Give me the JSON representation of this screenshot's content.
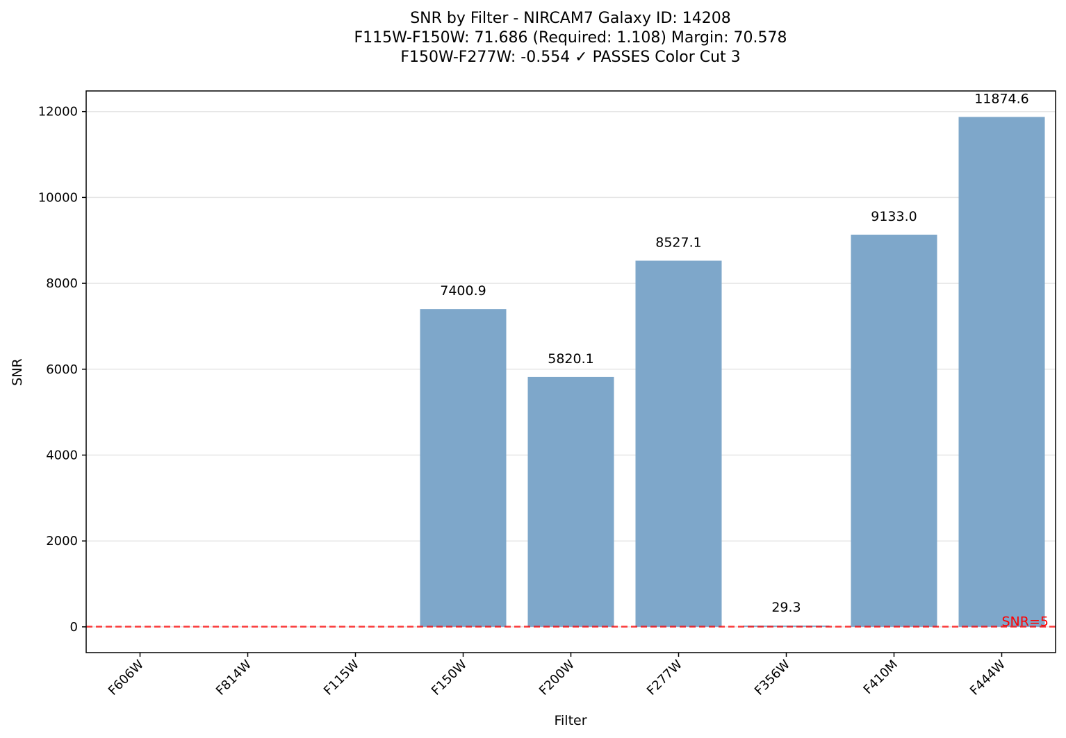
{
  "chart_data": {
    "type": "bar",
    "title_lines": [
      "SNR by Filter - NIRCAM7 Galaxy ID: 14208",
      "F115W-F150W: 71.686 (Required: 1.108) Margin: 70.578",
      "F150W-F277W: -0.554 ✓ PASSES Color Cut 3"
    ],
    "xlabel": "Filter",
    "ylabel": "SNR",
    "categories": [
      "F606W",
      "F814W",
      "F115W",
      "F150W",
      "F200W",
      "F277W",
      "F356W",
      "F410M",
      "F444W"
    ],
    "values": [
      null,
      null,
      null,
      7400.9,
      5820.1,
      8527.1,
      29.3,
      9133.0,
      11874.6
    ],
    "value_labels": [
      "",
      "",
      "",
      "7400.9",
      "5820.1",
      "8527.1",
      "29.3",
      "9133.0",
      "11874.6"
    ],
    "ylim": [
      -600,
      12480
    ],
    "yticks": [
      0,
      2000,
      4000,
      6000,
      8000,
      10000,
      12000
    ],
    "ytick_labels": [
      "0",
      "2000",
      "4000",
      "6000",
      "8000",
      "10000",
      "12000"
    ],
    "grid": "y",
    "bar_color": "#7ea7ca",
    "threshold": {
      "value": 5,
      "label": "SNR=5",
      "color": "#ff0000"
    }
  }
}
